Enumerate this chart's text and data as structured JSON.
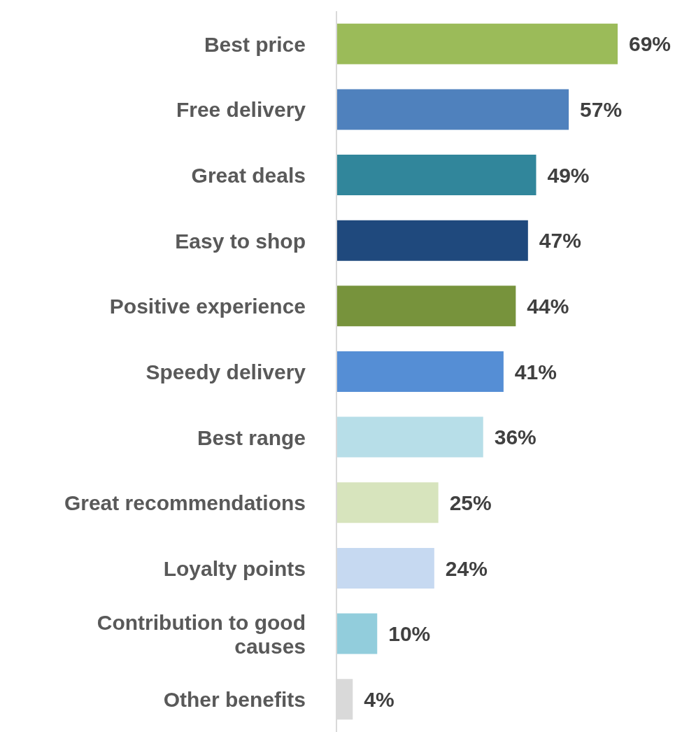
{
  "chart_data": {
    "type": "bar",
    "orientation": "horizontal",
    "categories": [
      "Best price",
      "Free delivery",
      "Great deals",
      "Easy to shop",
      "Positive experience",
      "Speedy delivery",
      "Best range",
      "Great recommendations",
      "Loyalty points",
      "Contribution to good causes",
      "Other benefits"
    ],
    "values": [
      69,
      57,
      49,
      47,
      44,
      41,
      36,
      25,
      24,
      10,
      4
    ],
    "colors": [
      "#9bbb59",
      "#4f81bd",
      "#31869b",
      "#1f497d",
      "#77933c",
      "#558ed5",
      "#b7dee8",
      "#d7e4bd",
      "#c6d9f1",
      "#92cddc",
      "#d9d9d9"
    ],
    "value_labels": [
      "69%",
      "57%",
      "49%",
      "47%",
      "44%",
      "41%",
      "36%",
      "25%",
      "24%",
      "10%",
      "4%"
    ]
  }
}
